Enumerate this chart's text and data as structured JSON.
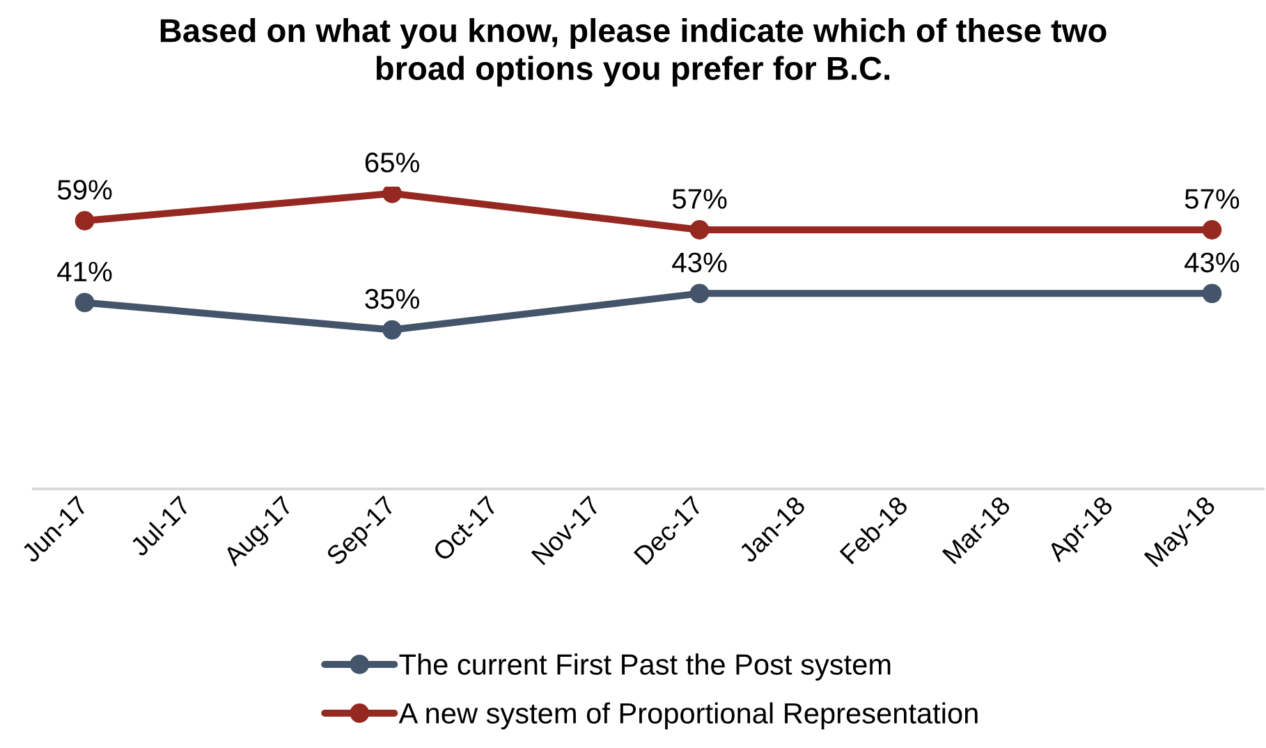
{
  "chart_data": {
    "type": "line",
    "title": "Based on what you know, please indicate which of these two\nbroad options you prefer for B.C.",
    "categories": [
      "Jun-17",
      "Jul-17",
      "Aug-17",
      "Sep-17",
      "Oct-17",
      "Nov-17",
      "Dec-17",
      "Jan-18",
      "Feb-18",
      "Mar-18",
      "Apr-18",
      "May-18"
    ],
    "series": [
      {
        "name": "The current First Past the Post system",
        "color": "#44546a",
        "x": [
          "Jun-17",
          "Sep-17",
          "Dec-17",
          "May-18"
        ],
        "values": [
          41,
          35,
          43,
          43
        ],
        "value_labels": [
          "41%",
          "35%",
          "43%",
          "43%"
        ]
      },
      {
        "name": "A new system of Proportional Representation",
        "color": "#962822",
        "x": [
          "Jun-17",
          "Sep-17",
          "Dec-17",
          "May-18"
        ],
        "values": [
          59,
          65,
          57,
          57
        ],
        "value_labels": [
          "59%",
          "65%",
          "57%",
          "57%"
        ]
      }
    ],
    "tick_labels": "x",
    "grid": false,
    "legend": "bottom",
    "marker": "circle",
    "line_style": "solid"
  }
}
